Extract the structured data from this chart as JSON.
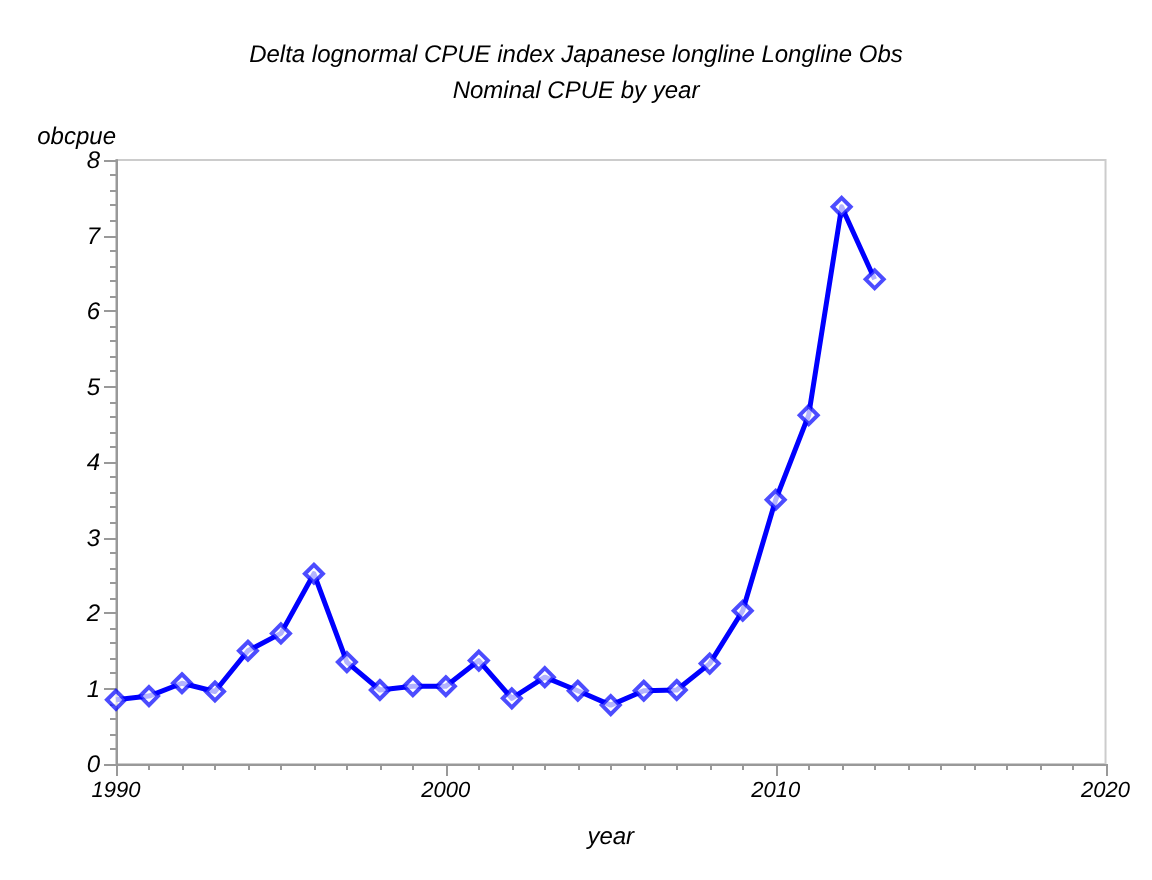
{
  "chart_data": {
    "type": "line",
    "title": "Delta lognormal CPUE index Japanese longline Longline Obs",
    "subtitle": "Nominal CPUE by year",
    "xlabel": "year",
    "ylabel": "obcpue",
    "x": [
      1990,
      1991,
      1992,
      1993,
      1994,
      1995,
      1996,
      1997,
      1998,
      1999,
      2000,
      2001,
      2002,
      2003,
      2004,
      2005,
      2006,
      2007,
      2008,
      2009,
      2010,
      2011,
      2012,
      2013
    ],
    "series": [
      {
        "color": "#0000ff",
        "values": [
          0.85,
          0.9,
          1.07,
          0.96,
          1.5,
          1.73,
          2.52,
          1.35,
          0.98,
          1.03,
          1.03,
          1.37,
          0.87,
          1.15,
          0.97,
          0.78,
          0.97,
          0.98,
          1.33,
          2.03,
          3.5,
          4.62,
          7.38,
          6.42
        ]
      }
    ],
    "xlim": [
      1990,
      2020
    ],
    "xticks": [
      1990,
      2000,
      2010,
      2020
    ],
    "ylim": [
      0,
      8
    ],
    "yticks": [
      0,
      1,
      2,
      3,
      4,
      5,
      6,
      7,
      8
    ],
    "marker": "diamond",
    "line_style": "solid"
  }
}
